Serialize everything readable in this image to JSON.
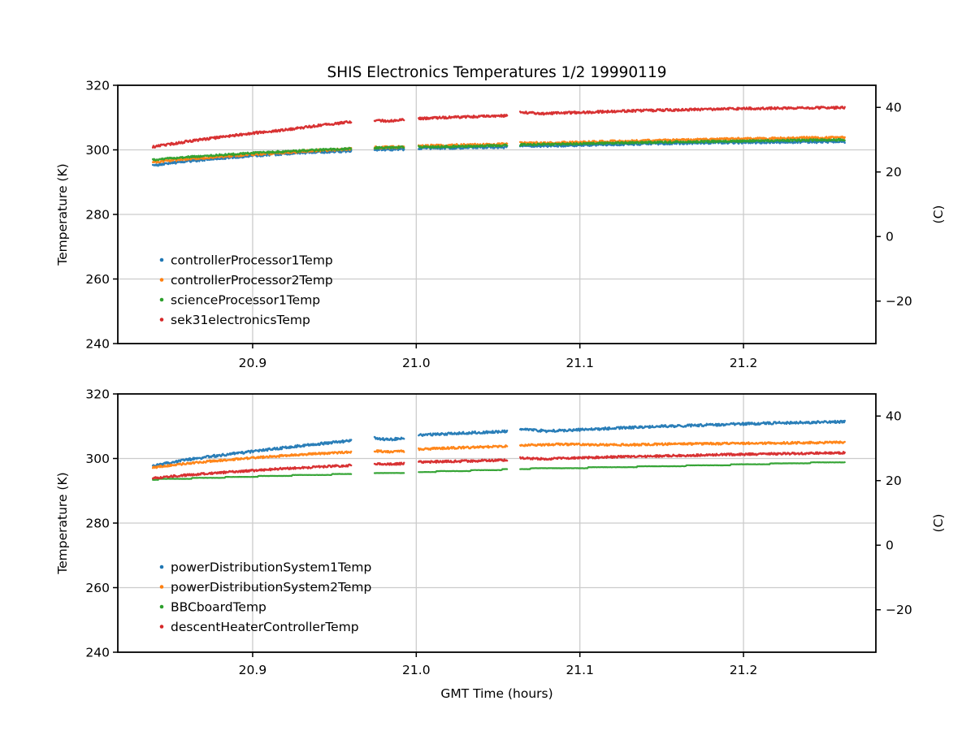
{
  "figure": {
    "title": "SHIS Electronics Temperatures 1/2 19990119",
    "xlabel": "GMT Time (hours)",
    "ylabel_left": "Temperature (K)",
    "ylabel_right": "(C)",
    "background": "#ffffff",
    "grid_color": "#cccccc",
    "spine_color": "#000000"
  },
  "chart_data": [
    {
      "type": "scatter",
      "marker": ".",
      "position": "top",
      "ylabel": "Temperature (K)",
      "right_ylabel": "(C)",
      "xlim": [
        20.8176,
        21.2809
      ],
      "ylim": [
        240,
        320
      ],
      "x_ticks": [
        20.9,
        21.0,
        21.1,
        21.2
      ],
      "x_tick_labels": [
        "20.9",
        "21.0",
        "21.1",
        "21.2"
      ],
      "y_ticks": [
        320,
        300,
        280,
        260,
        240
      ],
      "y_tick_labels": [
        "320",
        "300",
        "280",
        "260",
        "240"
      ],
      "y_grid_values": [
        300,
        280,
        260
      ],
      "right_ticks_celsius": [
        40,
        20,
        0,
        -20
      ],
      "right_tick_labels": [
        "40",
        "20",
        "0",
        "−20"
      ],
      "grid": true,
      "data_segments": [
        [
          20.839,
          20.9605
        ],
        [
          20.9745,
          20.9925
        ],
        [
          21.0015,
          21.0555
        ],
        [
          21.0635,
          21.262
        ]
      ],
      "series": [
        {
          "name": "controllerProcessor1Temp",
          "color": "#1f77b4",
          "noise": 0.38,
          "points": [
            [
              20.839,
              295.2
            ],
            [
              20.86,
              296.5
            ],
            [
              20.88,
              297.4
            ],
            [
              20.9,
              298.2
            ],
            [
              20.92,
              298.8
            ],
            [
              20.94,
              299.3
            ],
            [
              20.9605,
              299.7
            ],
            [
              20.9745,
              300.1
            ],
            [
              20.9925,
              300.2
            ],
            [
              21.0015,
              300.5
            ],
            [
              21.03,
              300.7
            ],
            [
              21.0555,
              300.9
            ],
            [
              21.0635,
              301.3
            ],
            [
              21.08,
              301.2
            ],
            [
              21.1,
              301.5
            ],
            [
              21.14,
              301.9
            ],
            [
              21.18,
              302.2
            ],
            [
              21.22,
              302.4
            ],
            [
              21.262,
              302.5
            ]
          ]
        },
        {
          "name": "controllerProcessor2Temp",
          "color": "#ff7f0e",
          "noise": 0.38,
          "points": [
            [
              20.839,
              296.2
            ],
            [
              20.86,
              297.2
            ],
            [
              20.88,
              297.9
            ],
            [
              20.9,
              298.6
            ],
            [
              20.92,
              299.2
            ],
            [
              20.94,
              299.8
            ],
            [
              20.9605,
              300.3
            ],
            [
              20.9745,
              300.7
            ],
            [
              20.9925,
              300.9
            ],
            [
              21.0015,
              301.2
            ],
            [
              21.03,
              301.5
            ],
            [
              21.0555,
              301.8
            ],
            [
              21.0635,
              302.1
            ],
            [
              21.08,
              302.1
            ],
            [
              21.12,
              302.6
            ],
            [
              21.16,
              303.0
            ],
            [
              21.2,
              303.4
            ],
            [
              21.24,
              303.7
            ],
            [
              21.262,
              303.8
            ]
          ]
        },
        {
          "name": "scienceProcessor1Temp",
          "color": "#2ca02c",
          "noise": 0.3,
          "points": [
            [
              20.839,
              296.9
            ],
            [
              20.86,
              297.8
            ],
            [
              20.88,
              298.4
            ],
            [
              20.9,
              299.0
            ],
            [
              20.92,
              299.5
            ],
            [
              20.94,
              300.0
            ],
            [
              20.9605,
              300.4
            ],
            [
              20.9745,
              300.6
            ],
            [
              20.9925,
              300.8
            ],
            [
              21.0015,
              300.9
            ],
            [
              21.03,
              301.1
            ],
            [
              21.0555,
              301.4
            ],
            [
              21.0635,
              301.6
            ],
            [
              21.1,
              301.9
            ],
            [
              21.14,
              302.3
            ],
            [
              21.18,
              302.6
            ],
            [
              21.22,
              302.9
            ],
            [
              21.262,
              303.1
            ]
          ]
        },
        {
          "name": "sek31electronicsTemp",
          "color": "#d62728",
          "noise": 0.36,
          "points": [
            [
              20.839,
              300.9
            ],
            [
              20.86,
              302.6
            ],
            [
              20.88,
              303.9
            ],
            [
              20.9,
              305.2
            ],
            [
              20.92,
              306.2
            ],
            [
              20.94,
              307.5
            ],
            [
              20.9605,
              308.7
            ],
            [
              20.9745,
              309.2
            ],
            [
              20.983,
              308.9
            ],
            [
              20.9925,
              309.3
            ],
            [
              21.0015,
              309.7
            ],
            [
              21.03,
              310.2
            ],
            [
              21.0555,
              310.6
            ],
            [
              21.0635,
              311.6
            ],
            [
              21.078,
              311.2
            ],
            [
              21.1,
              311.6
            ],
            [
              21.14,
              312.2
            ],
            [
              21.18,
              312.6
            ],
            [
              21.22,
              312.9
            ],
            [
              21.262,
              313.1
            ]
          ]
        }
      ]
    },
    {
      "type": "scatter",
      "marker": ".",
      "position": "bottom",
      "xlabel": "GMT Time (hours)",
      "ylabel": "Temperature (K)",
      "right_ylabel": "(C)",
      "xlim": [
        20.8176,
        21.2809
      ],
      "ylim": [
        240,
        320
      ],
      "x_ticks": [
        20.9,
        21.0,
        21.1,
        21.2
      ],
      "x_tick_labels": [
        "20.9",
        "21.0",
        "21.1",
        "21.2"
      ],
      "y_ticks": [
        320,
        300,
        280,
        260,
        240
      ],
      "y_tick_labels": [
        "320",
        "300",
        "280",
        "260",
        "240"
      ],
      "y_grid_values": [
        300,
        280,
        260
      ],
      "right_ticks_celsius": [
        40,
        20,
        0,
        -20
      ],
      "right_tick_labels": [
        "40",
        "20",
        "0",
        "−20"
      ],
      "grid": true,
      "data_segments": [
        [
          20.839,
          20.9605
        ],
        [
          20.9745,
          20.9925
        ],
        [
          21.0015,
          21.0555
        ],
        [
          21.0635,
          21.262
        ]
      ],
      "series": [
        {
          "name": "powerDistributionSystem1Temp",
          "color": "#1f77b4",
          "noise": 0.38,
          "points": [
            [
              20.839,
              297.7
            ],
            [
              20.86,
              299.6
            ],
            [
              20.88,
              301.0
            ],
            [
              20.9,
              302.2
            ],
            [
              20.92,
              303.4
            ],
            [
              20.94,
              304.5
            ],
            [
              20.9605,
              305.5
            ],
            [
              20.9745,
              306.3
            ],
            [
              20.983,
              305.9
            ],
            [
              20.9925,
              306.2
            ],
            [
              21.0015,
              307.2
            ],
            [
              21.03,
              307.9
            ],
            [
              21.0555,
              308.4
            ],
            [
              21.0635,
              309.1
            ],
            [
              21.08,
              308.5
            ],
            [
              21.1,
              308.9
            ],
            [
              21.14,
              309.8
            ],
            [
              21.18,
              310.4
            ],
            [
              21.22,
              311.0
            ],
            [
              21.262,
              311.4
            ]
          ]
        },
        {
          "name": "powerDistributionSystem2Temp",
          "color": "#ff7f0e",
          "noise": 0.32,
          "points": [
            [
              20.839,
              297.2
            ],
            [
              20.86,
              298.5
            ],
            [
              20.88,
              299.4
            ],
            [
              20.9,
              300.2
            ],
            [
              20.92,
              300.9
            ],
            [
              20.94,
              301.5
            ],
            [
              20.9605,
              302.0
            ],
            [
              20.9745,
              302.3
            ],
            [
              20.983,
              302.1
            ],
            [
              20.9925,
              302.3
            ],
            [
              21.0015,
              302.9
            ],
            [
              21.03,
              303.4
            ],
            [
              21.0555,
              303.8
            ],
            [
              21.0635,
              304.1
            ],
            [
              21.09,
              304.4
            ],
            [
              21.12,
              304.2
            ],
            [
              21.16,
              304.5
            ],
            [
              21.2,
              304.7
            ],
            [
              21.262,
              305.0
            ]
          ]
        },
        {
          "name": "BBCboardTemp",
          "color": "#2ca02c",
          "noise": 0.04,
          "quantize": 0.3,
          "width": 2.2,
          "points": [
            [
              20.839,
              293.5
            ],
            [
              20.88,
              294.1
            ],
            [
              20.92,
              294.7
            ],
            [
              20.9605,
              295.2
            ],
            [
              20.9745,
              295.4
            ],
            [
              20.9925,
              295.5
            ],
            [
              21.0015,
              295.8
            ],
            [
              21.03,
              296.2
            ],
            [
              21.0555,
              296.6
            ],
            [
              21.0635,
              296.8
            ],
            [
              21.1,
              297.1
            ],
            [
              21.14,
              297.5
            ],
            [
              21.18,
              297.9
            ],
            [
              21.22,
              298.4
            ],
            [
              21.262,
              298.9
            ]
          ]
        },
        {
          "name": "descentHeaterControllerTemp",
          "color": "#d62728",
          "noise": 0.32,
          "points": [
            [
              20.839,
              293.9
            ],
            [
              20.86,
              294.9
            ],
            [
              20.88,
              295.6
            ],
            [
              20.9,
              296.3
            ],
            [
              20.92,
              296.9
            ],
            [
              20.94,
              297.4
            ],
            [
              20.9605,
              297.9
            ],
            [
              20.9745,
              298.4
            ],
            [
              20.983,
              298.2
            ],
            [
              20.9925,
              298.4
            ],
            [
              21.0015,
              298.9
            ],
            [
              21.03,
              299.2
            ],
            [
              21.0555,
              299.5
            ],
            [
              21.0635,
              300.1
            ],
            [
              21.08,
              299.9
            ],
            [
              21.12,
              300.5
            ],
            [
              21.16,
              300.9
            ],
            [
              21.2,
              301.3
            ],
            [
              21.262,
              301.8
            ]
          ]
        }
      ]
    }
  ]
}
